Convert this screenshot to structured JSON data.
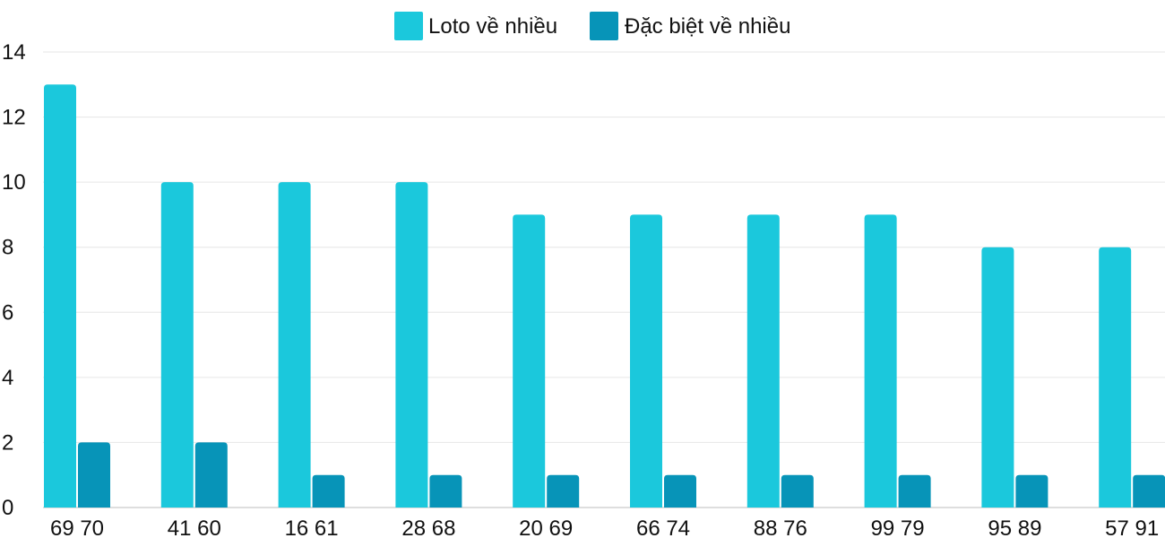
{
  "chart_data": {
    "type": "bar",
    "title": "",
    "xlabel": "",
    "ylabel": "",
    "categories": [
      "69 70",
      "41 60",
      "16 61",
      "28 68",
      "20 69",
      "66 74",
      "88 76",
      "99 79",
      "95 89",
      "57 91"
    ],
    "series": [
      {
        "name": "Loto về nhiều",
        "color": "#1bc8dc",
        "values": [
          13,
          10,
          10,
          10,
          9,
          9,
          9,
          9,
          8,
          8
        ]
      },
      {
        "name": "Đặc biệt về nhiều",
        "color": "#0794b8",
        "values": [
          2,
          2,
          1,
          1,
          1,
          1,
          1,
          1,
          1,
          1
        ]
      }
    ],
    "ylim": [
      0,
      14
    ],
    "yticks": [
      0,
      2,
      4,
      6,
      8,
      10,
      12,
      14
    ],
    "grid": true,
    "legend_position": "top-center"
  }
}
